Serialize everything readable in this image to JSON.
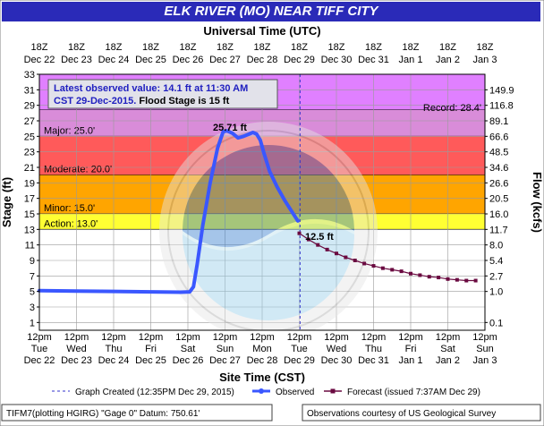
{
  "title": "ELK RIVER (MO) NEAR TIFF CITY",
  "colors": {
    "title_bg": "#2a2ab8",
    "record": "#e080ff",
    "major": "#d98cd9",
    "moderate": "#ff5a5a",
    "minor": "#ffa500",
    "action": "#ffff33",
    "observed": "#3a57ff",
    "forecast": "#6a0a40",
    "info_text": "#2020c0"
  },
  "info": {
    "line1": "Latest observed value: 14.1 ft at 11:30 AM",
    "line2_blue": "CST 29-Dec-2015.",
    "line2_black": " Flood Stage is 15 ft"
  },
  "record_label": "Record: 28.4'",
  "peak_label": "25.71 ft",
  "forecast_start_label": "12.5 ft",
  "legend": {
    "graph_created": "Graph Created (12:35PM Dec 29, 2015)",
    "observed": "Observed",
    "forecast": "Forecast (issued 7:37AM Dec 29)"
  },
  "footer": {
    "left": "TIFM7(plotting HGIRG) \"Gage 0\" Datum: 750.61'",
    "right": "Observations courtesy of US Geological Survey"
  },
  "watermark": "NATIONAL OCEANIC AND ATMOSPHERIC ADMINISTRATION · U.S. DEPARTMENT OF COMMERCE",
  "chart_data": {
    "type": "line",
    "xlabel_top": "Universal Time (UTC)",
    "xlabel_bottom": "Site Time (CST)",
    "ylabel_left": "Stage (ft)",
    "ylabel_right": "Flow (kcfs)",
    "ylim": [
      0,
      33
    ],
    "xlim_days": [
      "Dec 22",
      "Jan 3"
    ],
    "y_ticks": [
      1,
      3,
      5,
      7,
      9,
      11,
      13,
      15,
      17,
      19,
      21,
      23,
      25,
      27,
      29,
      31,
      33
    ],
    "right_ticks": [
      {
        "stage": 1,
        "label": "0.1"
      },
      {
        "stage": 5,
        "label": "1.0"
      },
      {
        "stage": 7,
        "label": "2.7"
      },
      {
        "stage": 9,
        "label": "5.4"
      },
      {
        "stage": 11,
        "label": "8.0"
      },
      {
        "stage": 13,
        "label": "11.7"
      },
      {
        "stage": 15,
        "label": "16.0"
      },
      {
        "stage": 17,
        "label": "20.5"
      },
      {
        "stage": 19,
        "label": "26.6"
      },
      {
        "stage": 21,
        "label": "34.6"
      },
      {
        "stage": 23,
        "label": "48.5"
      },
      {
        "stage": 25,
        "label": "66.6"
      },
      {
        "stage": 27,
        "label": "89.1"
      },
      {
        "stage": 29,
        "label": "116.8"
      },
      {
        "stage": 31,
        "label": "149.9"
      }
    ],
    "top_ticks": [
      {
        "time": "18Z",
        "date": "Dec 22"
      },
      {
        "time": "18Z",
        "date": "Dec 23"
      },
      {
        "time": "18Z",
        "date": "Dec 24"
      },
      {
        "time": "18Z",
        "date": "Dec 25"
      },
      {
        "time": "18Z",
        "date": "Dec 26"
      },
      {
        "time": "18Z",
        "date": "Dec 27"
      },
      {
        "time": "18Z",
        "date": "Dec 28"
      },
      {
        "time": "18Z",
        "date": "Dec 29"
      },
      {
        "time": "18Z",
        "date": "Dec 30"
      },
      {
        "time": "18Z",
        "date": "Dec 31"
      },
      {
        "time": "18Z",
        "date": "Jan 1"
      },
      {
        "time": "18Z",
        "date": "Jan 2"
      },
      {
        "time": "18Z",
        "date": "Jan 3"
      }
    ],
    "bottom_ticks": [
      {
        "time": "12pm",
        "day": "Tue",
        "date": "Dec 22"
      },
      {
        "time": "12pm",
        "day": "Wed",
        "date": "Dec 23"
      },
      {
        "time": "12pm",
        "day": "Thu",
        "date": "Dec 24"
      },
      {
        "time": "12pm",
        "day": "Fri",
        "date": "Dec 25"
      },
      {
        "time": "12pm",
        "day": "Sat",
        "date": "Dec 26"
      },
      {
        "time": "12pm",
        "day": "Sun",
        "date": "Dec 27"
      },
      {
        "time": "12pm",
        "day": "Mon",
        "date": "Dec 28"
      },
      {
        "time": "12pm",
        "day": "Tue",
        "date": "Dec 29"
      },
      {
        "time": "12pm",
        "day": "Wed",
        "date": "Dec 30"
      },
      {
        "time": "12pm",
        "day": "Thu",
        "date": "Dec 31"
      },
      {
        "time": "12pm",
        "day": "Fri",
        "date": "Jan 1"
      },
      {
        "time": "12pm",
        "day": "Sat",
        "date": "Jan 2"
      },
      {
        "time": "12pm",
        "day": "Sun",
        "date": "Jan 3"
      }
    ],
    "flood_categories": [
      {
        "name": "record",
        "label": "",
        "from": 28.4,
        "to": 33
      },
      {
        "name": "major",
        "label": "Major: 25.0'",
        "from": 25,
        "to": 28.4
      },
      {
        "name": "moderate",
        "label": "Moderate: 20.0'",
        "from": 20,
        "to": 25
      },
      {
        "name": "minor",
        "label": "Minor: 15.0'",
        "from": 15,
        "to": 20
      },
      {
        "name": "action",
        "label": "Action: 13.0'",
        "from": 13,
        "to": 15
      }
    ],
    "graph_created_day": 7.02,
    "observed": [
      {
        "day": 0.0,
        "stage": 5.1
      },
      {
        "day": 1.0,
        "stage": 5.05
      },
      {
        "day": 2.0,
        "stage": 5.0
      },
      {
        "day": 3.0,
        "stage": 4.95
      },
      {
        "day": 3.8,
        "stage": 4.9
      },
      {
        "day": 4.05,
        "stage": 4.95
      },
      {
        "day": 4.15,
        "stage": 5.6
      },
      {
        "day": 4.25,
        "stage": 8.5
      },
      {
        "day": 4.4,
        "stage": 13.5
      },
      {
        "day": 4.6,
        "stage": 19.0
      },
      {
        "day": 4.8,
        "stage": 23.5
      },
      {
        "day": 4.95,
        "stage": 25.6
      },
      {
        "day": 5.05,
        "stage": 25.71
      },
      {
        "day": 5.2,
        "stage": 25.4
      },
      {
        "day": 5.35,
        "stage": 24.8
      },
      {
        "day": 5.5,
        "stage": 25.0
      },
      {
        "day": 5.65,
        "stage": 25.3
      },
      {
        "day": 5.75,
        "stage": 25.5
      },
      {
        "day": 5.85,
        "stage": 25.3
      },
      {
        "day": 5.95,
        "stage": 24.5
      },
      {
        "day": 6.05,
        "stage": 22.8
      },
      {
        "day": 6.2,
        "stage": 20.5
      },
      {
        "day": 6.4,
        "stage": 18.5
      },
      {
        "day": 6.6,
        "stage": 16.8
      },
      {
        "day": 6.8,
        "stage": 15.3
      },
      {
        "day": 6.96,
        "stage": 14.1
      }
    ],
    "forecast": [
      {
        "day": 7.0,
        "stage": 12.5
      },
      {
        "day": 7.25,
        "stage": 11.7
      },
      {
        "day": 7.5,
        "stage": 11.0
      },
      {
        "day": 7.75,
        "stage": 10.4
      },
      {
        "day": 8.0,
        "stage": 9.9
      },
      {
        "day": 8.25,
        "stage": 9.4
      },
      {
        "day": 8.5,
        "stage": 9.0
      },
      {
        "day": 8.75,
        "stage": 8.6
      },
      {
        "day": 9.0,
        "stage": 8.3
      },
      {
        "day": 9.25,
        "stage": 8.0
      },
      {
        "day": 9.5,
        "stage": 7.8
      },
      {
        "day": 9.75,
        "stage": 7.6
      },
      {
        "day": 10.0,
        "stage": 7.3
      },
      {
        "day": 10.25,
        "stage": 7.1
      },
      {
        "day": 10.5,
        "stage": 6.9
      },
      {
        "day": 10.75,
        "stage": 6.8
      },
      {
        "day": 11.0,
        "stage": 6.6
      },
      {
        "day": 11.25,
        "stage": 6.5
      },
      {
        "day": 11.5,
        "stage": 6.4
      },
      {
        "day": 11.75,
        "stage": 6.4
      }
    ]
  }
}
